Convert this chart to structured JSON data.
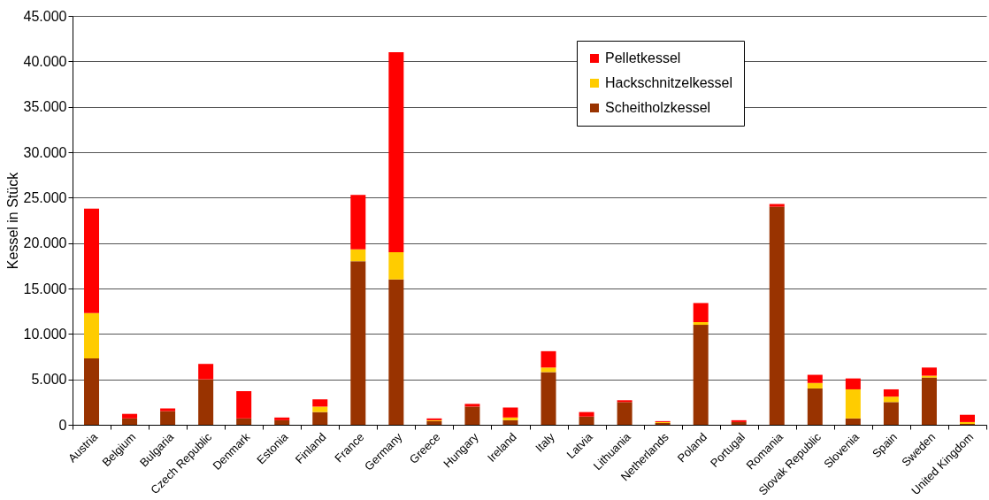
{
  "chart_data": {
    "type": "bar",
    "stacked": true,
    "ylabel": "Kessel in Stück",
    "categories": [
      "Austria",
      "Belgium",
      "Bulgaria",
      "Czech Republic",
      "Denmark",
      "Estonia",
      "Finland",
      "France",
      "Germany",
      "Greece",
      "Hungary",
      "Ireland",
      "Italy",
      "Latvia",
      "Lithuania",
      "Netherlands",
      "Poland",
      "Portugal",
      "Romania",
      "Slovak Republic",
      "Slovenia",
      "Spain",
      "Sweden",
      "United Kingdom"
    ],
    "series": [
      {
        "name": "Scheitholzkessel",
        "color": "#993300",
        "values": [
          7300,
          700,
          1500,
          5000,
          700,
          500,
          1400,
          18000,
          16000,
          400,
          2000,
          500,
          5800,
          900,
          2500,
          200,
          11000,
          300,
          24000,
          4000,
          700,
          2500,
          5200,
          100
        ]
      },
      {
        "name": "Hackschnitzelkessel",
        "color": "#ffcc00",
        "values": [
          5000,
          0,
          0,
          0,
          0,
          0,
          600,
          1300,
          3000,
          100,
          0,
          300,
          500,
          0,
          0,
          100,
          300,
          0,
          0,
          600,
          3200,
          600,
          200,
          200
        ]
      },
      {
        "name": "Pelletkessel",
        "color": "#ff0000",
        "values": [
          11500,
          500,
          300,
          1700,
          3000,
          300,
          800,
          6000,
          22000,
          200,
          300,
          1100,
          1800,
          500,
          200,
          100,
          2100,
          200,
          300,
          900,
          1200,
          800,
          900,
          800
        ]
      }
    ],
    "ylim": [
      0,
      45000
    ],
    "yticks": [
      {
        "value": 0,
        "label": "0"
      },
      {
        "value": 5000,
        "label": "5.000"
      },
      {
        "value": 10000,
        "label": "10.000"
      },
      {
        "value": 15000,
        "label": "15.000"
      },
      {
        "value": 20000,
        "label": "20.000"
      },
      {
        "value": 25000,
        "label": "25.000"
      },
      {
        "value": 30000,
        "label": "30.000"
      },
      {
        "value": 35000,
        "label": "35.000"
      },
      {
        "value": 40000,
        "label": "40.000"
      },
      {
        "value": 45000,
        "label": "45.000"
      }
    ],
    "grid": "y",
    "legend": "top right"
  }
}
